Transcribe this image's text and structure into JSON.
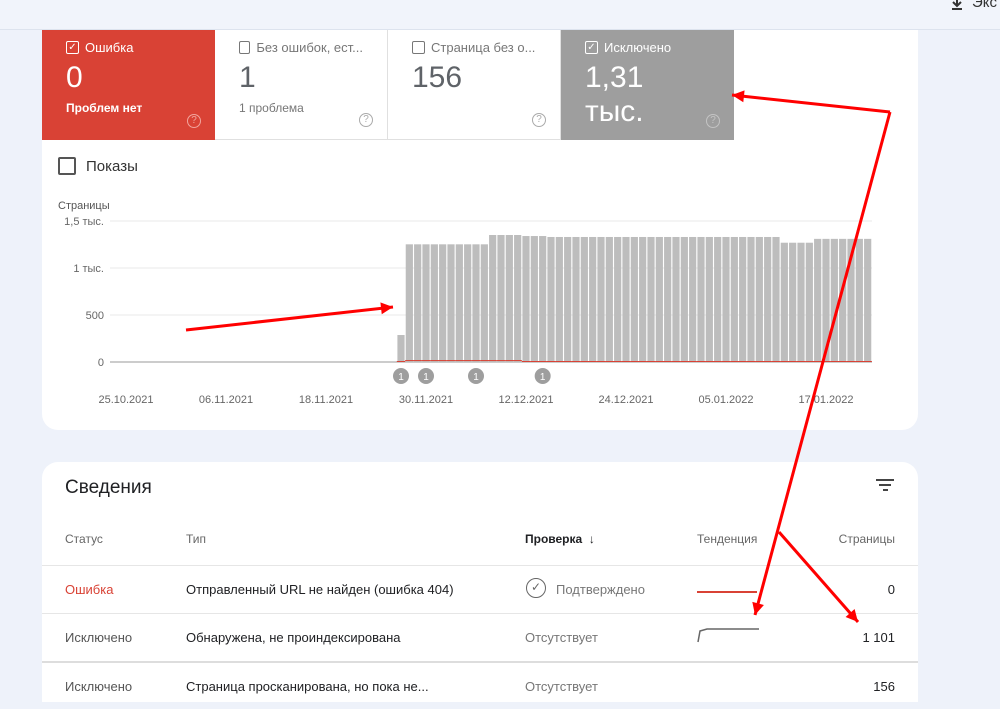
{
  "topbar": {
    "export_label": "Экс"
  },
  "status_tabs": [
    {
      "label": "Ошибка",
      "checked": true,
      "value": "0",
      "sub": "Проблем нет",
      "color": "#d94235"
    },
    {
      "label": "Без ошибок, ест...",
      "checked": false,
      "value": "1",
      "sub": "1 проблема"
    },
    {
      "label": "Страница без о...",
      "checked": false,
      "value": "156",
      "sub": ""
    },
    {
      "label": "Исключено",
      "checked": true,
      "value": "1,31 тыс.",
      "sub": "",
      "color": "#9e9e9e"
    }
  ],
  "impressions_toggle": {
    "label": "Показы",
    "checked": false
  },
  "chart_data": {
    "type": "bar",
    "ylabel": "Страницы",
    "ylim": [
      0,
      1500
    ],
    "yticks": [
      "0",
      "500",
      "1 тыс.",
      "1,5 тыс."
    ],
    "grid": true,
    "xticks": [
      "25.10.2021",
      "06.11.2021",
      "18.11.2021",
      "30.11.2021",
      "12.12.2021",
      "24.12.2021",
      "05.01.2022",
      "17.01.2022"
    ],
    "x": [
      "27.11.2021",
      "28.11.2021",
      "29.11.2021",
      "30.11.2021",
      "01.12.2021",
      "02.12.2021",
      "03.12.2021",
      "04.12.2021",
      "05.12.2021",
      "06.12.2021",
      "07.12.2021",
      "08.12.2021",
      "09.12.2021",
      "10.12.2021",
      "11.12.2021",
      "12.12.2021",
      "13.12.2021",
      "14.12.2021",
      "15.12.2021",
      "16.12.2021",
      "17.12.2021",
      "18.12.2021",
      "19.12.2021",
      "20.12.2021",
      "21.12.2021",
      "22.12.2021",
      "23.12.2021",
      "24.12.2021",
      "25.12.2021",
      "26.12.2021",
      "27.12.2021",
      "28.12.2021",
      "29.12.2021",
      "30.12.2021",
      "31.12.2021",
      "01.01.2022",
      "02.01.2022",
      "03.01.2022",
      "04.01.2022",
      "05.01.2022",
      "06.01.2022",
      "07.01.2022",
      "08.01.2022",
      "09.01.2022",
      "10.01.2022",
      "11.01.2022",
      "12.01.2022",
      "13.01.2022",
      "14.01.2022",
      "15.01.2022",
      "16.01.2022",
      "17.01.2022",
      "18.01.2022",
      "19.01.2022",
      "20.01.2022",
      "21.01.2022",
      "22.01.2022"
    ],
    "series": [
      {
        "color": "#bdbdbd",
        "values": [
          287,
          1252,
          1252,
          1252,
          1252,
          1252,
          1252,
          1252,
          1252,
          1252,
          1252,
          1351,
          1351,
          1351,
          1351,
          1340,
          1340,
          1340,
          1330,
          1330,
          1330,
          1330,
          1330,
          1330,
          1330,
          1330,
          1330,
          1330,
          1330,
          1330,
          1330,
          1330,
          1330,
          1330,
          1330,
          1330,
          1330,
          1330,
          1330,
          1330,
          1330,
          1330,
          1330,
          1330,
          1330,
          1330,
          1269,
          1269,
          1269,
          1269,
          1310,
          1310,
          1310,
          1310,
          1310,
          1310,
          1310
        ]
      },
      {
        "color": "#d94235",
        "values": [
          0,
          10,
          10,
          10,
          10,
          10,
          10,
          10,
          10,
          10,
          10,
          10,
          10,
          10,
          10,
          0,
          0,
          0,
          0,
          0,
          0,
          0,
          0,
          0,
          0,
          0,
          0,
          0,
          0,
          0,
          0,
          0,
          0,
          0,
          0,
          0,
          0,
          0,
          0,
          0,
          0,
          0,
          0,
          0,
          0,
          0,
          0,
          0,
          0,
          0,
          0,
          0,
          0,
          0,
          0,
          0,
          0
        ]
      }
    ],
    "annotations": [
      {
        "x": "27.11.2021",
        "label": "1"
      },
      {
        "x": "30.11.2021",
        "label": "1"
      },
      {
        "x": "06.12.2021",
        "label": "1"
      },
      {
        "x": "14.12.2021",
        "label": "1"
      }
    ]
  },
  "details": {
    "title": "Сведения",
    "columns": {
      "status": "Статус",
      "type": "Тип",
      "check": "Проверка",
      "trend": "Тенденция",
      "pages": "Страницы"
    },
    "rows": [
      {
        "status": "Ошибка",
        "type": "Отправленный URL не найден (ошибка 404)",
        "check": "Подтверждено",
        "pages": "0",
        "status_color": "#d94235"
      },
      {
        "status": "Исключено",
        "type": "Обнаружена, не проиндексирована",
        "check": "Отсутствует",
        "pages": "1 101"
      },
      {
        "status": "Исключено",
        "type": "Страница просканирована, но пока не...",
        "check": "Отсутствует",
        "pages": "156"
      }
    ]
  },
  "annotation_color": "#ff0000"
}
